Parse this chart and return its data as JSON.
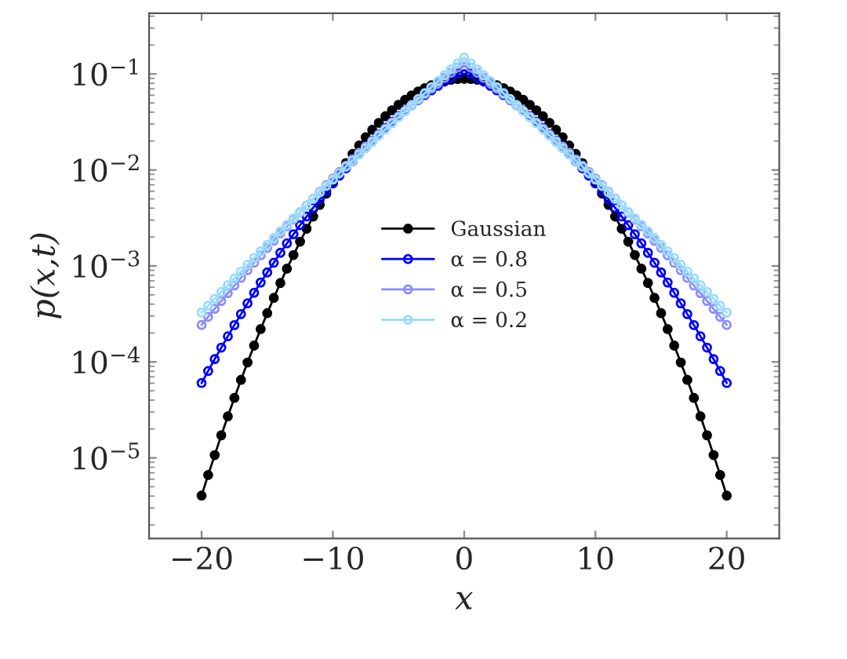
{
  "chart_data": {
    "type": "line",
    "xlabel": "x",
    "ylabel": "p(x,t)",
    "x": [
      -20,
      -19.5,
      -19,
      -18.5,
      -18,
      -17.5,
      -17,
      -16.5,
      -16,
      -15.5,
      -15,
      -14.5,
      -14,
      -13.5,
      -13,
      -12.5,
      -12,
      -11.5,
      -11,
      -10.5,
      -10,
      -9.5,
      -9,
      -8.5,
      -8,
      -7.5,
      -7,
      -6.5,
      -6,
      -5.5,
      -5,
      -4.5,
      -4,
      -3.5,
      -3,
      -2.5,
      -2,
      -1.5,
      -1,
      -0.5,
      0,
      0.5,
      1,
      1.5,
      2,
      2.5,
      3,
      3.5,
      4,
      4.5,
      5,
      5.5,
      6,
      6.5,
      7,
      7.5,
      8,
      8.5,
      9,
      9.5,
      10,
      10.5,
      11,
      11.5,
      12,
      12.5,
      13,
      13.5,
      14,
      14.5,
      15,
      15.5,
      16,
      16.5,
      17,
      17.5,
      18,
      18.5,
      19,
      19.5,
      20
    ],
    "series": [
      {
        "name": "Gaussian",
        "color": "#000000",
        "values": [
          4.05e-06,
          6.64e-06,
          1.07e-05,
          1.72e-05,
          2.71e-05,
          4.22e-05,
          6.5e-05,
          9.87e-05,
          0.000148,
          0.00022,
          0.000322,
          0.000465,
          0.000664,
          0.000937,
          0.0013,
          0.00179,
          0.00244,
          0.00327,
          0.00433,
          0.00567,
          0.00732,
          0.00934,
          0.0118,
          0.0147,
          0.018,
          0.0219,
          0.0262,
          0.031,
          0.0363,
          0.0419,
          0.0477,
          0.0538,
          0.0598,
          0.0657,
          0.0712,
          0.0763,
          0.0807,
          0.0843,
          0.087,
          0.0886,
          0.0892,
          0.0886,
          0.087,
          0.0843,
          0.0807,
          0.0763,
          0.0712,
          0.0657,
          0.0598,
          0.0538,
          0.0477,
          0.0419,
          0.0363,
          0.031,
          0.0262,
          0.0219,
          0.018,
          0.0147,
          0.0118,
          0.00934,
          0.00732,
          0.00567,
          0.00433,
          0.00327,
          0.00244,
          0.00179,
          0.0013,
          0.000937,
          0.000664,
          0.000465,
          0.000322,
          0.00022,
          0.000148,
          9.87e-05,
          6.5e-05,
          4.22e-05,
          2.71e-05,
          1.72e-05,
          1.07e-05,
          6.64e-06,
          4.05e-06
        ]
      },
      {
        "name": "α = 0.8",
        "color": "#0000ff",
        "values": [
          6.03e-05,
          8.04e-05,
          0.000107,
          0.000141,
          0.000185,
          0.000242,
          0.000315,
          0.000408,
          0.000525,
          0.000672,
          0.000856,
          0.00108,
          0.00137,
          0.00172,
          0.00214,
          0.00266,
          0.00328,
          0.00403,
          0.00493,
          0.00599,
          0.00724,
          0.00872,
          0.0104,
          0.0124,
          0.0147,
          0.0174,
          0.0203,
          0.0237,
          0.0275,
          0.0318,
          0.0365,
          0.0417,
          0.0474,
          0.0536,
          0.0603,
          0.0675,
          0.0752,
          0.0832,
          0.0917,
          0.101,
          0.11,
          0.101,
          0.0917,
          0.0832,
          0.0752,
          0.0675,
          0.0603,
          0.0536,
          0.0474,
          0.0417,
          0.0365,
          0.0318,
          0.0275,
          0.0237,
          0.0203,
          0.0174,
          0.0147,
          0.0124,
          0.0104,
          0.00872,
          0.00724,
          0.00599,
          0.00493,
          0.00403,
          0.00328,
          0.00266,
          0.00214,
          0.00172,
          0.00137,
          0.00108,
          0.000856,
          0.000672,
          0.000525,
          0.000408,
          0.000315,
          0.000242,
          0.000185,
          0.000141,
          0.000107,
          8.04e-05,
          6.03e-05
        ]
      },
      {
        "name": "α = 0.5",
        "color": "#8c8cff",
        "values": [
          0.000243,
          0.000295,
          0.000357,
          0.000431,
          0.00052,
          0.000626,
          0.000752,
          0.000902,
          0.00108,
          0.00129,
          0.00154,
          0.00183,
          0.00218,
          0.00259,
          0.00306,
          0.00362,
          0.00427,
          0.00503,
          0.00592,
          0.00695,
          0.00814,
          0.00952,
          0.0111,
          0.0129,
          0.0151,
          0.0175,
          0.0202,
          0.0234,
          0.027,
          0.0312,
          0.0359,
          0.0412,
          0.0472,
          0.054,
          0.0617,
          0.0703,
          0.08,
          0.0909,
          0.103,
          0.117,
          0.132,
          0.117,
          0.103,
          0.0909,
          0.08,
          0.0703,
          0.0617,
          0.054,
          0.0472,
          0.0412,
          0.0359,
          0.0312,
          0.027,
          0.0234,
          0.0202,
          0.0175,
          0.0151,
          0.0129,
          0.0111,
          0.00952,
          0.00814,
          0.00695,
          0.00592,
          0.00503,
          0.00427,
          0.00362,
          0.00306,
          0.00259,
          0.00218,
          0.00183,
          0.00154,
          0.00129,
          0.00108,
          0.000902,
          0.000752,
          0.000626,
          0.00052,
          0.000431,
          0.000357,
          0.000295,
          0.000243
        ]
      },
      {
        "name": "α = 0.2",
        "color": "#99dcff",
        "values": [
          0.000327,
          0.000385,
          0.000455,
          0.000536,
          0.000631,
          0.000743,
          0.000874,
          0.00103,
          0.00121,
          0.00142,
          0.00166,
          0.00195,
          0.00229,
          0.00268,
          0.00313,
          0.00366,
          0.00428,
          0.005,
          0.00584,
          0.00681,
          0.00793,
          0.00924,
          0.0108,
          0.0125,
          0.0145,
          0.0169,
          0.0196,
          0.0228,
          0.0264,
          0.0306,
          0.0354,
          0.041,
          0.0474,
          0.0548,
          0.0632,
          0.073,
          0.0842,
          0.097,
          0.112,
          0.129,
          0.148,
          0.129,
          0.112,
          0.097,
          0.0842,
          0.073,
          0.0632,
          0.0548,
          0.0474,
          0.041,
          0.0354,
          0.0306,
          0.0264,
          0.0228,
          0.0196,
          0.0169,
          0.0145,
          0.0125,
          0.0108,
          0.00924,
          0.00793,
          0.00681,
          0.00584,
          0.005,
          0.00428,
          0.00366,
          0.00313,
          0.00268,
          0.00229,
          0.00195,
          0.00166,
          0.00142,
          0.00121,
          0.00103,
          0.000874,
          0.000743,
          0.000631,
          0.000536,
          0.000455,
          0.000385,
          0.000327
        ]
      }
    ],
    "log": "y",
    "marker": "circle",
    "line_style": "solid",
    "legend": "center",
    "xlim": [
      -24,
      24
    ],
    "xticks": [
      {
        "value": -20,
        "label": "−20"
      },
      {
        "value": -10,
        "label": "−10"
      },
      0,
      10,
      20
    ],
    "ylim": [
      1.45e-06,
      0.43
    ],
    "yticks": [
      {
        "value": 1e-05,
        "label": "10$^{−5}$"
      },
      {
        "value": 0.0001,
        "label": "10$^{−4}$"
      },
      {
        "value": 0.001,
        "label": "10$^{−3}$"
      },
      {
        "value": 0.01,
        "label": "10$^{−2}$"
      },
      {
        "value": 0.1,
        "label": "10$^{−1}$"
      }
    ]
  }
}
